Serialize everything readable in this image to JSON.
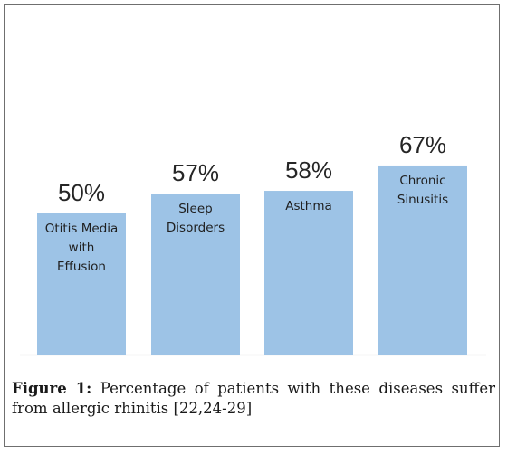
{
  "chart_data": {
    "type": "bar",
    "categories": [
      [
        "Otitis Media",
        "with",
        "Effusion"
      ],
      [
        "Sleep",
        "Disorders"
      ],
      [
        "Asthma"
      ],
      [
        "Chronic",
        "Sinusitis"
      ]
    ],
    "values": [
      50,
      57,
      58,
      67
    ],
    "data_labels": [
      "50%",
      "57%",
      "58%",
      "67%"
    ],
    "ylim": [
      0,
      100
    ],
    "grid": false,
    "bar_color": "#9dc3e6",
    "axis_color": "#d9d9d9"
  },
  "caption": {
    "label": "Figure 1:",
    "text": " Percentage of patients with these diseases suffer from allergic rhinitis [22,24-29]"
  }
}
